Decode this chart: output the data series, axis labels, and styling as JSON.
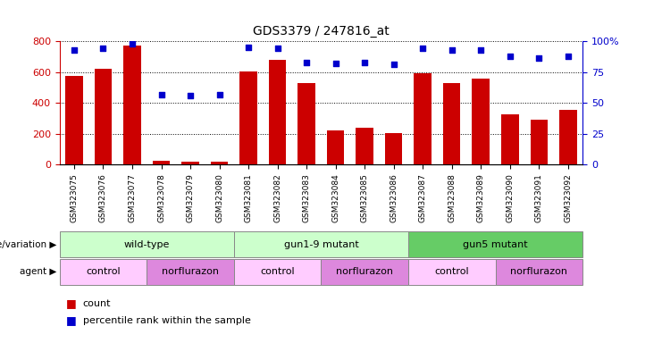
{
  "title": "GDS3379 / 247816_at",
  "samples": [
    "GSM323075",
    "GSM323076",
    "GSM323077",
    "GSM323078",
    "GSM323079",
    "GSM323080",
    "GSM323081",
    "GSM323082",
    "GSM323083",
    "GSM323084",
    "GSM323085",
    "GSM323086",
    "GSM323087",
    "GSM323088",
    "GSM323089",
    "GSM323090",
    "GSM323091",
    "GSM323092"
  ],
  "counts": [
    575,
    620,
    770,
    25,
    18,
    22,
    605,
    680,
    530,
    220,
    240,
    205,
    590,
    530,
    560,
    325,
    290,
    355
  ],
  "percentile_ranks": [
    93,
    94,
    98,
    57,
    56,
    57,
    95,
    94,
    83,
    82,
    83,
    81,
    94,
    93,
    93,
    88,
    86,
    88
  ],
  "ylim_left": [
    0,
    800
  ],
  "ylim_right": [
    0,
    100
  ],
  "yticks_left": [
    0,
    200,
    400,
    600,
    800
  ],
  "yticks_right": [
    0,
    25,
    50,
    75,
    100
  ],
  "yticklabels_right": [
    "0",
    "25",
    "50",
    "75",
    "100%"
  ],
  "bar_color": "#cc0000",
  "dot_color": "#0000cc",
  "background_color": "#ffffff",
  "plot_bg_color": "#ffffff",
  "genotype_groups": [
    {
      "label": "wild-type",
      "start": 0,
      "end": 5,
      "color": "#ccffcc"
    },
    {
      "label": "gun1-9 mutant",
      "start": 6,
      "end": 11,
      "color": "#ccffcc"
    },
    {
      "label": "gun5 mutant",
      "start": 12,
      "end": 17,
      "color": "#66cc66"
    }
  ],
  "agent_groups": [
    {
      "label": "control",
      "start": 0,
      "end": 2,
      "color": "#ffccff"
    },
    {
      "label": "norflurazon",
      "start": 3,
      "end": 5,
      "color": "#dd88dd"
    },
    {
      "label": "control",
      "start": 6,
      "end": 8,
      "color": "#ffccff"
    },
    {
      "label": "norflurazon",
      "start": 9,
      "end": 11,
      "color": "#dd88dd"
    },
    {
      "label": "control",
      "start": 12,
      "end": 14,
      "color": "#ffccff"
    },
    {
      "label": "norflurazon",
      "start": 15,
      "end": 17,
      "color": "#dd88dd"
    }
  ],
  "genotype_label": "genotype/variation",
  "agent_label": "agent",
  "legend_count_color": "#cc0000",
  "legend_pct_color": "#0000cc",
  "legend_count_label": "count",
  "legend_pct_label": "percentile rank within the sample"
}
